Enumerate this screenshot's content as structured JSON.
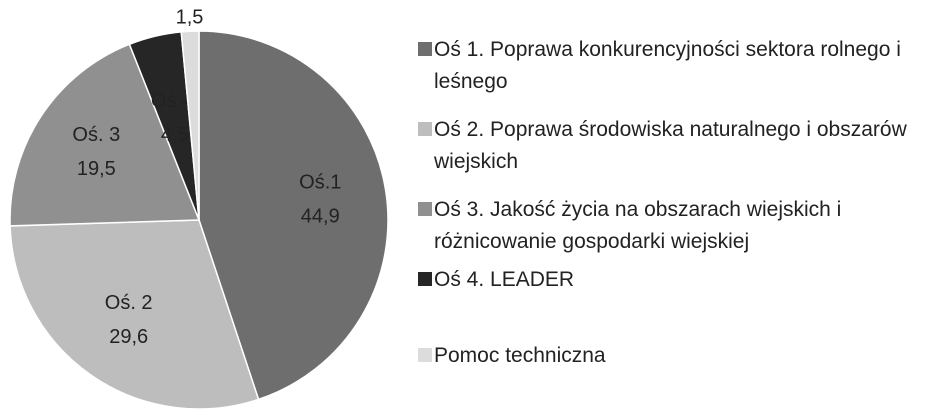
{
  "chart_data": {
    "type": "pie",
    "categories": [
      "Oś 1. Poprawa konkurencyjności sektora rolnego i leśnego",
      "Oś 2. Poprawa środowiska naturalnego i obszarów wiejskich",
      "Oś 3. Jakość życia na obszarach wiejskich i różnicowanie gospodarki wiejskiej",
      "Oś 4. LEADER",
      "Pomoc techniczna"
    ],
    "slice_labels": [
      "Oś.1",
      "Oś. 2",
      "Oś. 3",
      "Oś.4.",
      null
    ],
    "values": [
      44.9,
      29.6,
      19.5,
      4.5,
      1.5
    ],
    "value_labels": [
      "44,9",
      "29,6",
      "19,5",
      "4,5",
      "1,5"
    ],
    "colors": [
      "#6e6e6e",
      "#bdbdbd",
      "#909090",
      "#262626",
      "#dcdcdc"
    ],
    "legend": "right"
  }
}
